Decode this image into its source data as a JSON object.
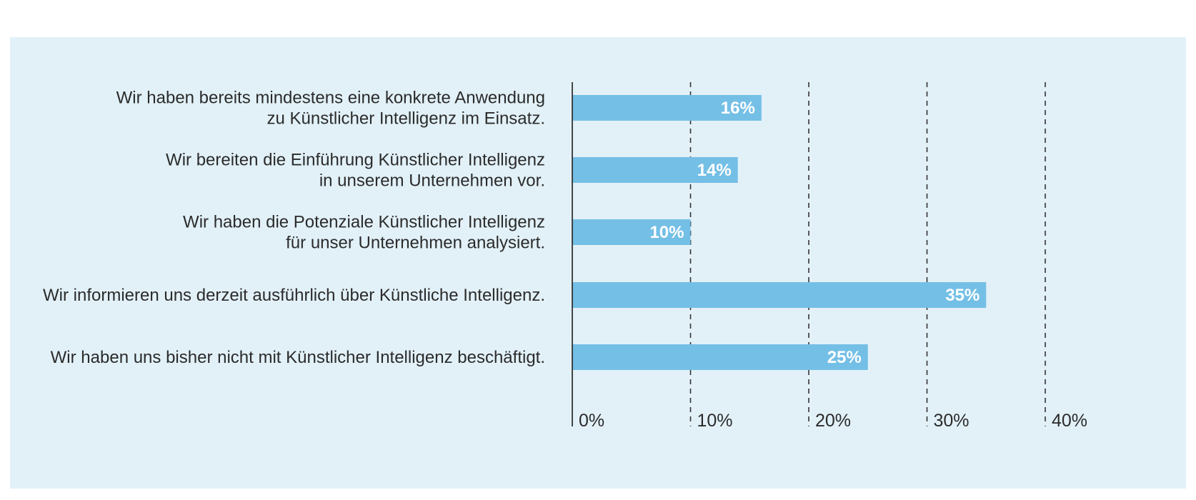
{
  "chart_data": {
    "type": "bar",
    "orientation": "horizontal",
    "categories": [
      [
        "Wir haben bereits mindestens eine konkrete Anwendung",
        "zu Künstlicher Intelligenz im Einsatz."
      ],
      [
        "Wir bereiten die Einführung Künstlicher Intelligenz",
        "in unserem Unternehmen vor."
      ],
      [
        "Wir haben die Potenziale Künstlicher Intelligenz",
        "für unser Unternehmen analysiert."
      ],
      [
        "Wir informieren uns derzeit ausführlich über Künstliche Intelligenz."
      ],
      [
        "Wir haben uns bisher nicht mit Künstlicher Intelligenz beschäftigt."
      ]
    ],
    "values": [
      16,
      14,
      10,
      35,
      25
    ],
    "value_labels": [
      "16%",
      "14%",
      "10%",
      "35%",
      "25%"
    ],
    "xlim": [
      0,
      40
    ],
    "x_ticks": [
      0,
      10,
      20,
      30,
      40
    ],
    "x_tick_labels": [
      "0%",
      "10%",
      "20%",
      "30%",
      "40%"
    ],
    "grid": "vertical dashed",
    "title": "",
    "xlabel": "",
    "ylabel": "",
    "colors": {
      "panel_background": "#e2f1f8",
      "bar": "#74bfe6",
      "value_text": "#ffffff",
      "axis": "#333333",
      "text": "#2b2b2b"
    }
  }
}
